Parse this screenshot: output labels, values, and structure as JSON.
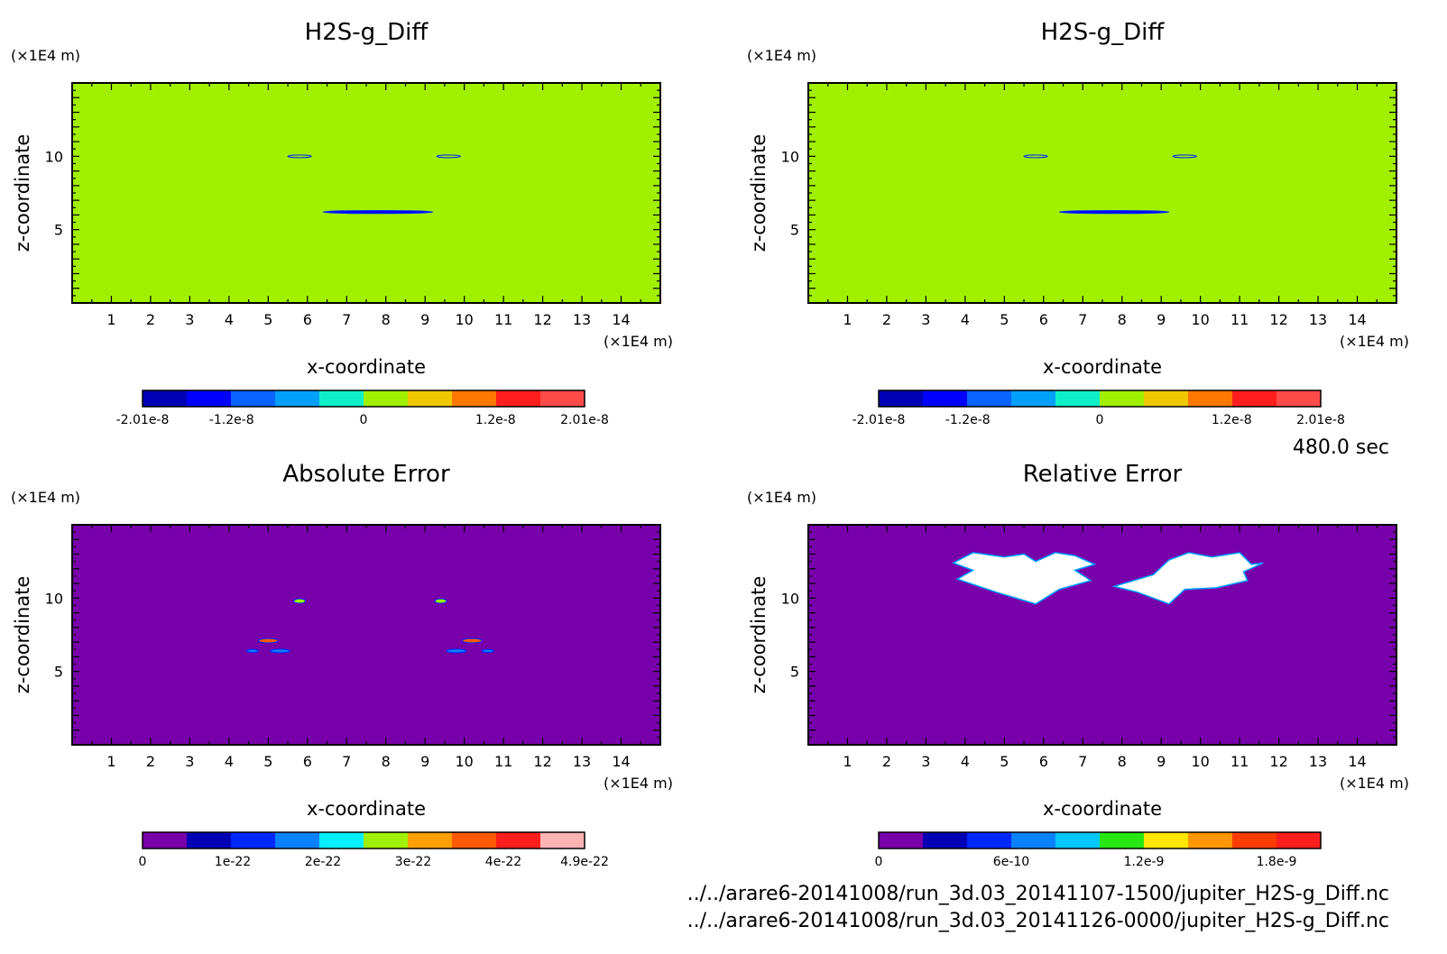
{
  "footer": {
    "time_label": "480.0 sec",
    "files": [
      "../../arare6-20141008/run_3d.03_20141107-1500/jupiter_H2S-g_Diff.nc",
      "../../arare6-20141008/run_3d.03_20141126-0000/jupiter_H2S-g_Diff.nc"
    ]
  },
  "chart_data": [
    {
      "type": "heatmap",
      "title": "H2S-g_Diff",
      "xlabel": "x-coordinate",
      "ylabel": "z-coordinate",
      "x_unit": "(×1E4 m)",
      "y_unit": "(×1E4 m)",
      "xlim": [
        0,
        15
      ],
      "ylim": [
        0,
        15
      ],
      "x_ticks": [
        "1",
        "2",
        "3",
        "4",
        "5",
        "6",
        "7",
        "8",
        "9",
        "10",
        "11",
        "12",
        "13",
        "14"
      ],
      "y_ticks": [
        "5",
        "10"
      ],
      "background_value": 0,
      "colorbar": {
        "colors": [
          "#0000b4",
          "#0000ff",
          "#0a64ff",
          "#00a0ff",
          "#10f0c8",
          "#a0f000",
          "#f0c800",
          "#ff7800",
          "#ff1e1e",
          "#ff4a4a"
        ],
        "tick_labels": [
          "-2.01e-8",
          "-1.2e-8",
          "0",
          "1.2e-8",
          "2.01e-8"
        ],
        "tick_values": [
          -2.01e-08,
          -1.2e-08,
          0,
          1.2e-08,
          2.01e-08
        ],
        "range": [
          -2.01e-08,
          2.01e-08
        ]
      },
      "bands": [
        {
          "z": [
            13.9,
            14.15
          ],
          "value": 2e-09
        },
        {
          "z": [
            13.4,
            13.65
          ],
          "value": 2e-09
        },
        {
          "z": [
            12.9,
            13.15
          ],
          "value": 2e-09
        },
        {
          "z": [
            6.6,
            6.85
          ],
          "value": 2e-09
        },
        {
          "z": [
            5.95,
            6.2
          ],
          "value": 2e-09
        },
        {
          "z": [
            5.35,
            5.6
          ],
          "value": 2e-09
        },
        {
          "z": [
            4.75,
            5.0
          ],
          "value": 2e-09
        },
        {
          "z": [
            4.15,
            4.4
          ],
          "value": 2e-09
        }
      ],
      "features": [
        {
          "x": 7.8,
          "z": 6.2,
          "rx": 1.4,
          "rz": 0.1,
          "value": -1.6e-08
        },
        {
          "x": 5.8,
          "z": 10.0,
          "rx": 0.3,
          "rz": 0.05,
          "value": 2e-09
        },
        {
          "x": 9.6,
          "z": 10.0,
          "rx": 0.3,
          "rz": 0.05,
          "value": 2e-09
        }
      ]
    },
    {
      "type": "heatmap",
      "title": "H2S-g_Diff",
      "xlabel": "x-coordinate",
      "ylabel": "z-coordinate",
      "x_unit": "(×1E4 m)",
      "y_unit": "(×1E4 m)",
      "xlim": [
        0,
        15
      ],
      "ylim": [
        0,
        15
      ],
      "x_ticks": [
        "1",
        "2",
        "3",
        "4",
        "5",
        "6",
        "7",
        "8",
        "9",
        "10",
        "11",
        "12",
        "13",
        "14"
      ],
      "y_ticks": [
        "5",
        "10"
      ],
      "background_value": 0,
      "colorbar": {
        "colors": [
          "#0000b4",
          "#0000ff",
          "#0a64ff",
          "#00a0ff",
          "#10f0c8",
          "#a0f000",
          "#f0c800",
          "#ff7800",
          "#ff1e1e",
          "#ff4a4a"
        ],
        "tick_labels": [
          "-2.01e-8",
          "-1.2e-8",
          "0",
          "1.2e-8",
          "2.01e-8"
        ],
        "tick_values": [
          -2.01e-08,
          -1.2e-08,
          0,
          1.2e-08,
          2.01e-08
        ],
        "range": [
          -2.01e-08,
          2.01e-08
        ]
      },
      "bands": [
        {
          "z": [
            13.9,
            14.15
          ],
          "value": 2e-09
        },
        {
          "z": [
            13.4,
            13.65
          ],
          "value": 2e-09
        },
        {
          "z": [
            12.9,
            13.15
          ],
          "value": 2e-09
        },
        {
          "z": [
            6.6,
            6.85
          ],
          "value": 2e-09
        },
        {
          "z": [
            5.95,
            6.2
          ],
          "value": 2e-09
        },
        {
          "z": [
            5.35,
            5.6
          ],
          "value": 2e-09
        },
        {
          "z": [
            4.75,
            5.0
          ],
          "value": 2e-09
        },
        {
          "z": [
            4.15,
            4.4
          ],
          "value": 2e-09
        }
      ],
      "features": [
        {
          "x": 7.8,
          "z": 6.2,
          "rx": 1.4,
          "rz": 0.1,
          "value": -1.6e-08
        },
        {
          "x": 5.8,
          "z": 10.0,
          "rx": 0.3,
          "rz": 0.05,
          "value": 2e-09
        },
        {
          "x": 9.6,
          "z": 10.0,
          "rx": 0.3,
          "rz": 0.05,
          "value": 2e-09
        }
      ]
    },
    {
      "type": "heatmap",
      "title": "Absolute Error",
      "xlabel": "x-coordinate",
      "ylabel": "z-coordinate",
      "x_unit": "(×1E4 m)",
      "y_unit": "(×1E4 m)",
      "xlim": [
        0,
        15
      ],
      "ylim": [
        0,
        15
      ],
      "x_ticks": [
        "1",
        "2",
        "3",
        "4",
        "5",
        "6",
        "7",
        "8",
        "9",
        "10",
        "11",
        "12",
        "13",
        "14"
      ],
      "y_ticks": [
        "5",
        "10"
      ],
      "background_value": 0,
      "colorbar": {
        "colors": [
          "#7800aa",
          "#0000b4",
          "#0028ff",
          "#0a82ff",
          "#00f0ff",
          "#a0f000",
          "#ffa000",
          "#ff5a00",
          "#ff1e1e",
          "#ffb4b4"
        ],
        "tick_labels": [
          "0",
          "1e-22",
          "2e-22",
          "3e-22",
          "4e-22",
          "4.9e-22"
        ],
        "tick_values": [
          0,
          1e-22,
          2e-22,
          3e-22,
          4e-22,
          4.9e-22
        ],
        "range": [
          0,
          4.9e-22
        ]
      },
      "bands": [],
      "features": [
        {
          "x": 5.8,
          "z": 9.8,
          "rx": 0.15,
          "rz": 0.15,
          "value": 2.5e-22
        },
        {
          "x": 9.4,
          "z": 9.8,
          "rx": 0.15,
          "rz": 0.15,
          "value": 2.5e-22
        },
        {
          "x": 5.0,
          "z": 7.1,
          "rx": 0.25,
          "rz": 0.15,
          "value": 3.5e-22
        },
        {
          "x": 10.2,
          "z": 7.1,
          "rx": 0.25,
          "rz": 0.15,
          "value": 3.5e-22
        },
        {
          "x": 5.3,
          "z": 6.4,
          "rx": 0.25,
          "rz": 0.12,
          "value": 1.5e-22
        },
        {
          "x": 9.8,
          "z": 6.4,
          "rx": 0.25,
          "rz": 0.12,
          "value": 1.5e-22
        },
        {
          "x": 4.6,
          "z": 6.4,
          "rx": 0.15,
          "rz": 0.1,
          "value": 1.5e-22
        },
        {
          "x": 10.6,
          "z": 6.4,
          "rx": 0.15,
          "rz": 0.1,
          "value": 1.5e-22
        }
      ]
    },
    {
      "type": "heatmap",
      "title": "Relative Error",
      "xlabel": "x-coordinate",
      "ylabel": "z-coordinate",
      "x_unit": "(×1E4 m)",
      "y_unit": "(×1E4 m)",
      "xlim": [
        0,
        15
      ],
      "ylim": [
        0,
        15
      ],
      "x_ticks": [
        "1",
        "2",
        "3",
        "4",
        "5",
        "6",
        "7",
        "8",
        "9",
        "10",
        "11",
        "12",
        "13",
        "14"
      ],
      "y_ticks": [
        "5",
        "10"
      ],
      "background_value": 0,
      "colorbar": {
        "colors": [
          "#7800aa",
          "#0000b4",
          "#0028ff",
          "#0a82ff",
          "#00c8ff",
          "#28e614",
          "#ffe600",
          "#ff9600",
          "#ff3c00",
          "#ff1e1e"
        ],
        "tick_labels": [
          "0",
          "6e-10",
          "1.2e-9",
          "1.8e-9"
        ],
        "tick_values": [
          0,
          6e-10,
          1.2e-09,
          1.8e-09
        ],
        "range": [
          0,
          2e-09
        ]
      },
      "bands": [],
      "undefined_regions": [
        {
          "points": [
            [
              3.7,
              12.4
            ],
            [
              4.2,
              13.1
            ],
            [
              5.0,
              12.8
            ],
            [
              5.5,
              13.0
            ],
            [
              5.8,
              12.5
            ],
            [
              6.3,
              13.1
            ],
            [
              6.8,
              12.9
            ],
            [
              7.3,
              12.3
            ],
            [
              6.8,
              11.9
            ],
            [
              7.2,
              11.2
            ],
            [
              6.4,
              10.6
            ],
            [
              5.8,
              9.6
            ],
            [
              4.8,
              10.4
            ],
            [
              3.8,
              11.3
            ],
            [
              4.2,
              11.9
            ]
          ]
        },
        {
          "points": [
            [
              7.8,
              10.8
            ],
            [
              8.8,
              11.6
            ],
            [
              9.2,
              12.6
            ],
            [
              9.7,
              13.1
            ],
            [
              10.3,
              12.8
            ],
            [
              11.0,
              13.1
            ],
            [
              11.3,
              12.3
            ],
            [
              11.6,
              12.4
            ],
            [
              11.1,
              11.8
            ],
            [
              11.2,
              11.2
            ],
            [
              10.4,
              10.7
            ],
            [
              9.6,
              10.6
            ],
            [
              9.2,
              9.6
            ],
            [
              8.4,
              10.4
            ]
          ]
        }
      ],
      "features": []
    }
  ]
}
